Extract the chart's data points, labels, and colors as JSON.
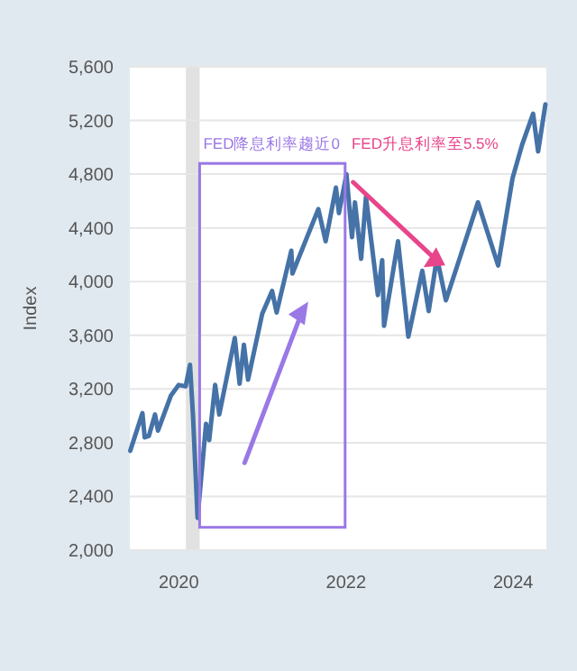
{
  "chart_data": {
    "type": "line",
    "ylabel": "Index",
    "x": [
      "2019-06-03",
      "2019-07-26",
      "2019-08-05",
      "2019-08-23",
      "2019-09-19",
      "2019-10-02",
      "2019-11-27",
      "2019-12-31",
      "2020-01-31",
      "2020-02-19",
      "2020-03-03",
      "2020-03-23",
      "2020-04-29",
      "2020-05-13",
      "2020-06-08",
      "2020-06-26",
      "2020-09-02",
      "2020-09-23",
      "2020-10-12",
      "2020-10-30",
      "2020-12-31",
      "2021-02-12",
      "2021-03-04",
      "2021-05-07",
      "2021-05-12",
      "2021-09-02",
      "2021-10-04",
      "2021-11-18",
      "2021-12-01",
      "2022-01-03",
      "2022-01-27",
      "2022-02-09",
      "2022-03-08",
      "2022-03-29",
      "2022-05-20",
      "2022-06-08",
      "2022-06-16",
      "2022-08-16",
      "2022-09-30",
      "2022-11-30",
      "2022-12-28",
      "2023-02-02",
      "2023-03-13",
      "2023-07-31",
      "2023-10-27",
      "2023-12-29",
      "2024-02-09",
      "2024-03-28",
      "2024-04-19",
      "2024-05-21"
    ],
    "series": [
      {
        "color": "#4572a7",
        "values": [
          2740,
          3020,
          2840,
          2850,
          3010,
          2890,
          3150,
          3230,
          3220,
          3380,
          3000,
          2240,
          2940,
          2820,
          3230,
          3010,
          3580,
          3240,
          3530,
          3270,
          3760,
          3930,
          3770,
          4230,
          4060,
          4540,
          4300,
          4700,
          4510,
          4800,
          4330,
          4590,
          4170,
          4630,
          3900,
          4160,
          3670,
          4300,
          3590,
          4080,
          3780,
          4180,
          3860,
          4590,
          4120,
          4770,
          5020,
          5250,
          4970,
          5320
        ]
      }
    ],
    "xlim": [
      "2019-06-01",
      "2024-05-25"
    ],
    "xticks": [
      {
        "value": "2020-01-01",
        "label": "2020"
      },
      {
        "value": "2022-01-01",
        "label": "2022"
      },
      {
        "value": "2024-01-01",
        "label": "2024"
      }
    ],
    "ylim": [
      2000,
      5600
    ],
    "yticks": [
      {
        "value": 2000,
        "label": "2,000"
      },
      {
        "value": 2400,
        "label": "2,400"
      },
      {
        "value": 2800,
        "label": "2,800"
      },
      {
        "value": 3200,
        "label": "3,200"
      },
      {
        "value": 3600,
        "label": "3,600"
      },
      {
        "value": 4000,
        "label": "4,000"
      },
      {
        "value": 4400,
        "label": "4,400"
      },
      {
        "value": 4800,
        "label": "4,800"
      },
      {
        "value": 5200,
        "label": "5,200"
      },
      {
        "value": 5600,
        "label": "5,600"
      }
    ],
    "grid": "y",
    "bands": [
      {
        "axis": "x",
        "from": "2020-02-01",
        "to": "2020-04-01",
        "color": "#e1e1e1"
      }
    ],
    "annotations": [
      "FED降息利率趨近0",
      "FED升息利率至5.5%"
    ]
  }
}
